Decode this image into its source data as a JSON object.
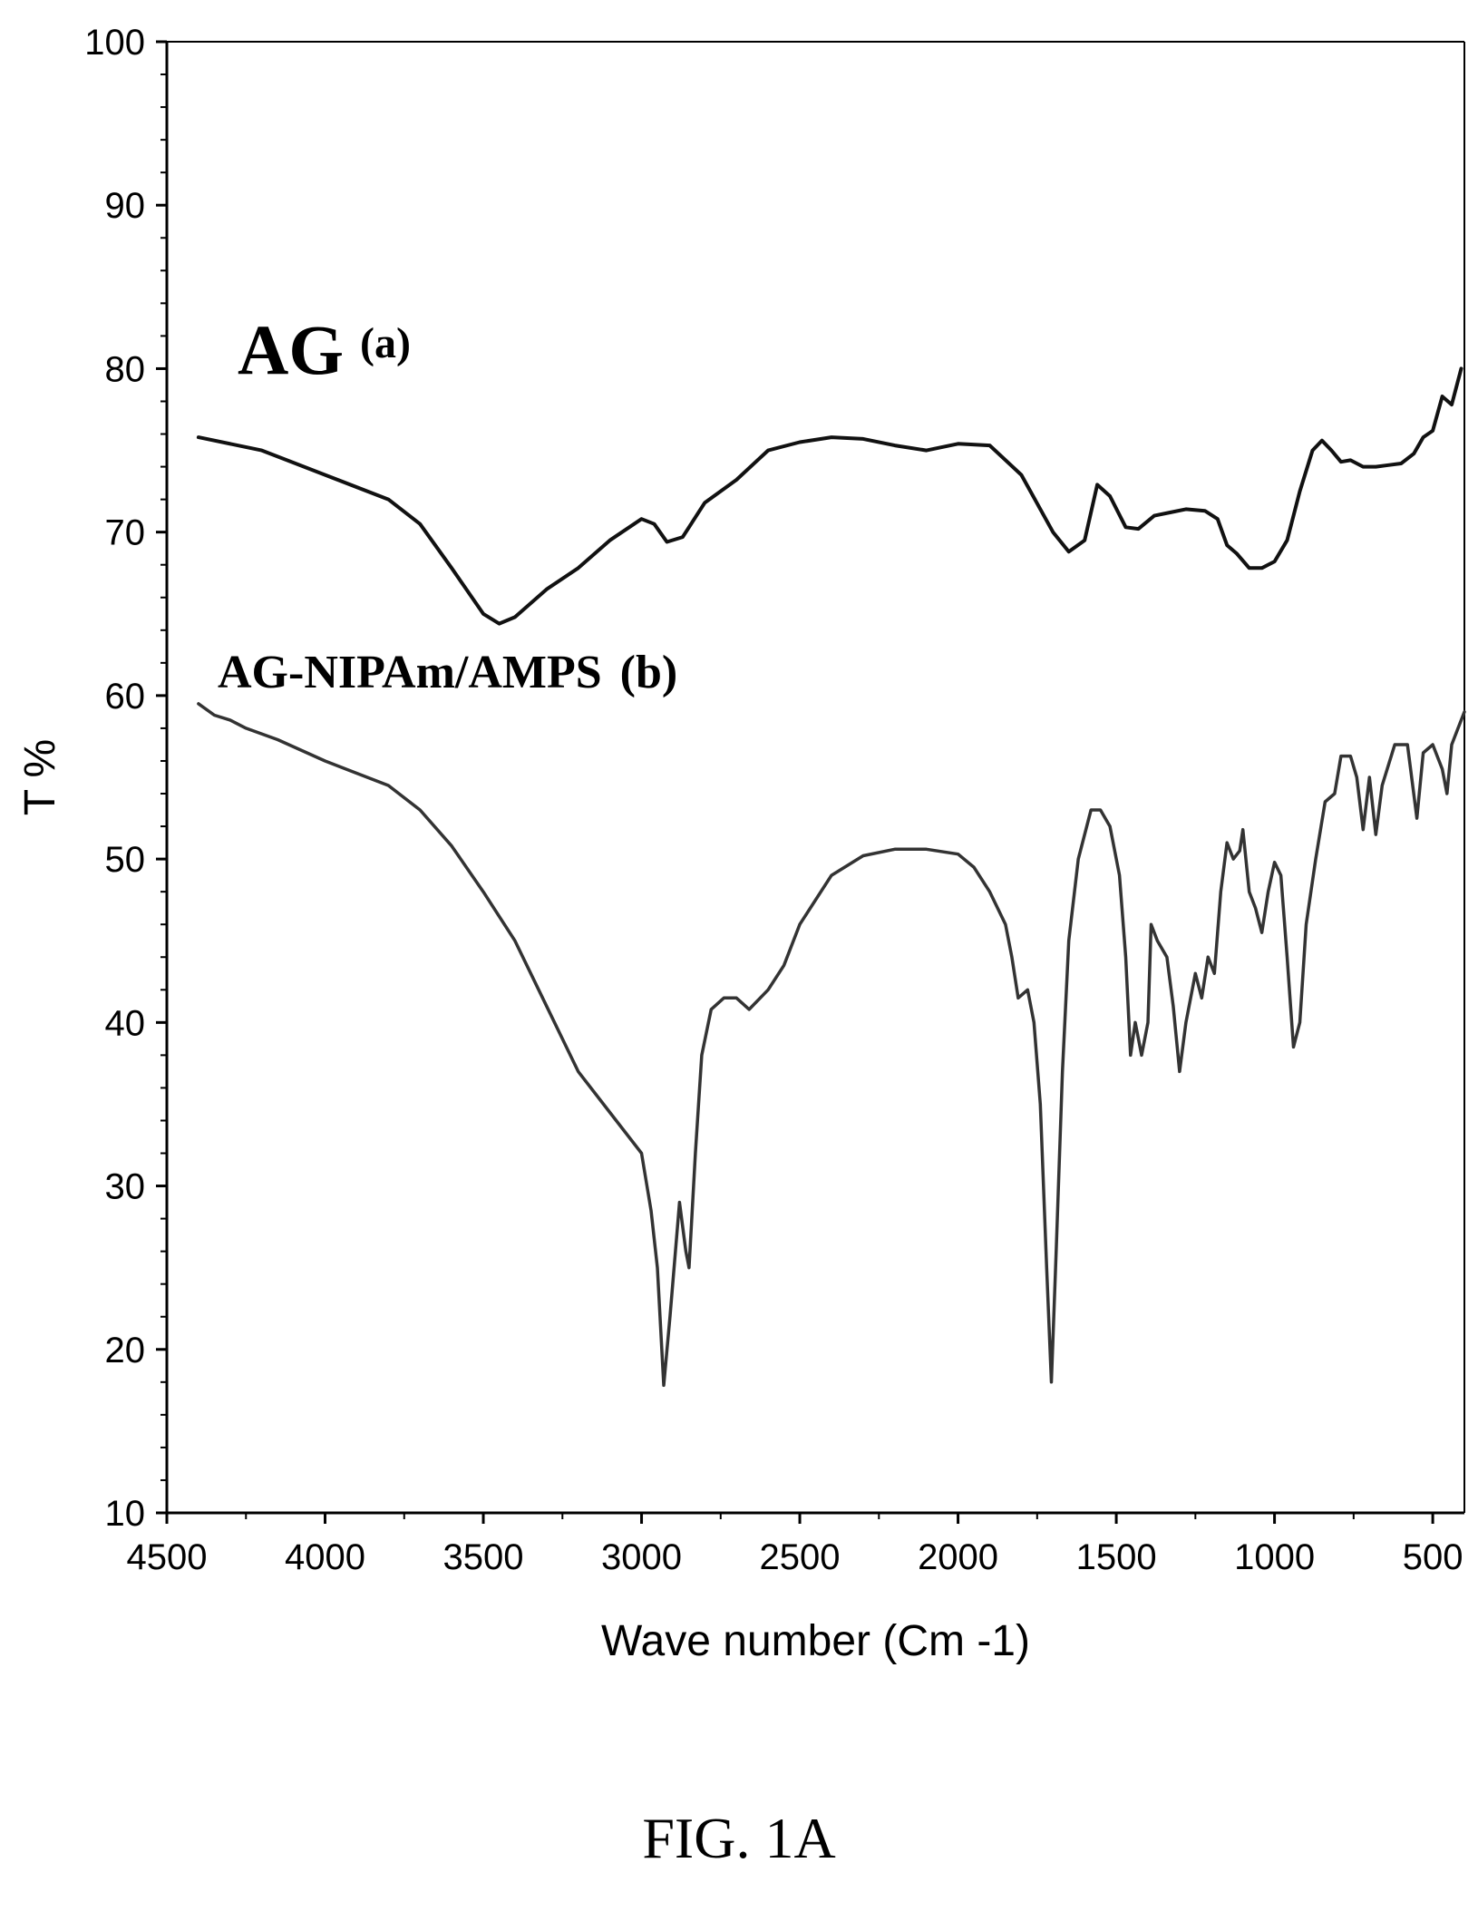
{
  "chart_data": {
    "type": "line",
    "xlabel": "Wave number (Cm -1)",
    "ylabel": "T %",
    "xlim": [
      4500,
      400
    ],
    "ylim": [
      10,
      100
    ],
    "x_ticks": [
      4500,
      4000,
      3500,
      3000,
      2500,
      2000,
      1500,
      1000,
      500
    ],
    "y_ticks": [
      10,
      20,
      30,
      40,
      50,
      60,
      70,
      80,
      90,
      100
    ],
    "grid": false,
    "annotations": [
      {
        "main": "AG",
        "suffix": "(a)",
        "series": "a"
      },
      {
        "main": "AG-NIPAm/AMPS",
        "suffix": "(b)",
        "series": "b"
      }
    ],
    "series": [
      {
        "name": "AG (a)",
        "color": "#111111",
        "points": [
          [
            4400,
            75.8
          ],
          [
            4200,
            75.0
          ],
          [
            4000,
            73.5
          ],
          [
            3800,
            72.0
          ],
          [
            3700,
            70.5
          ],
          [
            3600,
            67.8
          ],
          [
            3500,
            65.0
          ],
          [
            3450,
            64.4
          ],
          [
            3400,
            64.8
          ],
          [
            3300,
            66.5
          ],
          [
            3200,
            67.8
          ],
          [
            3100,
            69.5
          ],
          [
            3000,
            70.8
          ],
          [
            2960,
            70.5
          ],
          [
            2920,
            69.4
          ],
          [
            2870,
            69.7
          ],
          [
            2800,
            71.8
          ],
          [
            2700,
            73.2
          ],
          [
            2600,
            75.0
          ],
          [
            2500,
            75.5
          ],
          [
            2400,
            75.8
          ],
          [
            2300,
            75.7
          ],
          [
            2200,
            75.3
          ],
          [
            2100,
            75.0
          ],
          [
            2000,
            75.4
          ],
          [
            1900,
            75.3
          ],
          [
            1800,
            73.5
          ],
          [
            1700,
            70.0
          ],
          [
            1650,
            68.8
          ],
          [
            1600,
            69.5
          ],
          [
            1560,
            72.9
          ],
          [
            1520,
            72.2
          ],
          [
            1470,
            70.3
          ],
          [
            1430,
            70.2
          ],
          [
            1380,
            71.0
          ],
          [
            1330,
            71.2
          ],
          [
            1280,
            71.4
          ],
          [
            1220,
            71.3
          ],
          [
            1180,
            70.8
          ],
          [
            1150,
            69.2
          ],
          [
            1120,
            68.7
          ],
          [
            1080,
            67.8
          ],
          [
            1040,
            67.8
          ],
          [
            1000,
            68.2
          ],
          [
            960,
            69.5
          ],
          [
            920,
            72.5
          ],
          [
            880,
            75.0
          ],
          [
            850,
            75.6
          ],
          [
            820,
            75.0
          ],
          [
            790,
            74.3
          ],
          [
            760,
            74.4
          ],
          [
            720,
            74.0
          ],
          [
            680,
            74.0
          ],
          [
            640,
            74.1
          ],
          [
            600,
            74.2
          ],
          [
            560,
            74.8
          ],
          [
            530,
            75.8
          ],
          [
            500,
            76.2
          ],
          [
            470,
            78.3
          ],
          [
            440,
            77.8
          ],
          [
            410,
            80.0
          ]
        ]
      },
      {
        "name": "AG-NIPAm/AMPS (b)",
        "color": "#333333",
        "points": [
          [
            4400,
            59.5
          ],
          [
            4350,
            58.8
          ],
          [
            4300,
            58.5
          ],
          [
            4250,
            58.0
          ],
          [
            4150,
            57.3
          ],
          [
            4000,
            56.0
          ],
          [
            3800,
            54.5
          ],
          [
            3700,
            53.0
          ],
          [
            3600,
            50.8
          ],
          [
            3500,
            48.0
          ],
          [
            3400,
            45.0
          ],
          [
            3300,
            41.0
          ],
          [
            3200,
            37.0
          ],
          [
            3100,
            34.5
          ],
          [
            3000,
            32.0
          ],
          [
            2970,
            28.5
          ],
          [
            2950,
            25.0
          ],
          [
            2930,
            17.8
          ],
          [
            2910,
            22.0
          ],
          [
            2880,
            29.0
          ],
          [
            2860,
            26.0
          ],
          [
            2850,
            25.0
          ],
          [
            2830,
            32.0
          ],
          [
            2810,
            38.0
          ],
          [
            2780,
            40.8
          ],
          [
            2740,
            41.5
          ],
          [
            2700,
            41.5
          ],
          [
            2660,
            40.8
          ],
          [
            2600,
            42.0
          ],
          [
            2550,
            43.5
          ],
          [
            2500,
            46.0
          ],
          [
            2400,
            49.0
          ],
          [
            2300,
            50.2
          ],
          [
            2200,
            50.6
          ],
          [
            2100,
            50.6
          ],
          [
            2000,
            50.3
          ],
          [
            1950,
            49.5
          ],
          [
            1900,
            48.0
          ],
          [
            1850,
            46.0
          ],
          [
            1830,
            44.0
          ],
          [
            1810,
            41.5
          ],
          [
            1780,
            42.0
          ],
          [
            1760,
            40.0
          ],
          [
            1740,
            35.0
          ],
          [
            1720,
            25.0
          ],
          [
            1705,
            18.0
          ],
          [
            1690,
            26.0
          ],
          [
            1670,
            37.0
          ],
          [
            1650,
            45.0
          ],
          [
            1620,
            50.0
          ],
          [
            1580,
            53.0
          ],
          [
            1550,
            53.0
          ],
          [
            1520,
            52.0
          ],
          [
            1490,
            49.0
          ],
          [
            1470,
            44.0
          ],
          [
            1455,
            38.0
          ],
          [
            1440,
            40.0
          ],
          [
            1420,
            38.0
          ],
          [
            1400,
            40.0
          ],
          [
            1390,
            46.0
          ],
          [
            1370,
            45.0
          ],
          [
            1340,
            44.0
          ],
          [
            1320,
            41.0
          ],
          [
            1300,
            37.0
          ],
          [
            1280,
            40.0
          ],
          [
            1250,
            43.0
          ],
          [
            1230,
            41.5
          ],
          [
            1210,
            44.0
          ],
          [
            1190,
            43.0
          ],
          [
            1170,
            48.0
          ],
          [
            1150,
            51.0
          ],
          [
            1130,
            50.0
          ],
          [
            1110,
            50.5
          ],
          [
            1100,
            51.8
          ],
          [
            1080,
            48.0
          ],
          [
            1060,
            47.0
          ],
          [
            1040,
            45.5
          ],
          [
            1020,
            48.0
          ],
          [
            1000,
            49.8
          ],
          [
            980,
            49.0
          ],
          [
            960,
            44.0
          ],
          [
            940,
            38.5
          ],
          [
            920,
            40.0
          ],
          [
            900,
            46.0
          ],
          [
            870,
            50.0
          ],
          [
            840,
            53.5
          ],
          [
            810,
            54.0
          ],
          [
            790,
            56.3
          ],
          [
            760,
            56.3
          ],
          [
            740,
            55.0
          ],
          [
            720,
            51.8
          ],
          [
            700,
            55.0
          ],
          [
            680,
            51.5
          ],
          [
            660,
            54.5
          ],
          [
            620,
            57.0
          ],
          [
            580,
            57.0
          ],
          [
            550,
            52.5
          ],
          [
            530,
            56.5
          ],
          [
            500,
            57.0
          ],
          [
            470,
            55.5
          ],
          [
            455,
            54.0
          ],
          [
            440,
            57.0
          ],
          [
            420,
            58.0
          ],
          [
            400,
            59.0
          ]
        ]
      }
    ]
  },
  "figure_caption": "FIG. 1A"
}
